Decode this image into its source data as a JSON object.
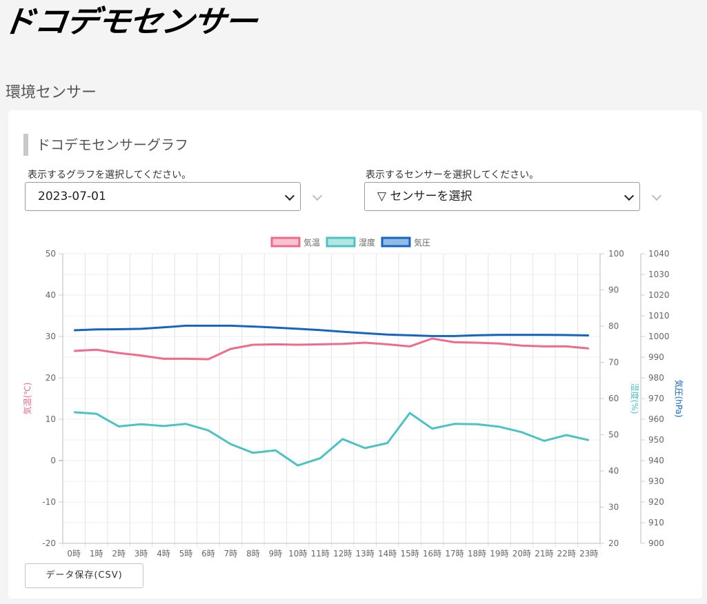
{
  "brand": {
    "logo_text": "ドコデモセンサー"
  },
  "page": {
    "title": "環境センサー"
  },
  "card": {
    "section_title": "ドコデモセンサーグラフ",
    "graph_select": {
      "label": "表示するグラフを選択してください。",
      "value": "2023-07-01"
    },
    "sensor_select": {
      "label": "表示するセンサーを選択してください。",
      "value": "▽ センサーを選択"
    },
    "csv_button": "データ保存(CSV)"
  },
  "colors": {
    "temperature": "#f06a8a",
    "humidity": "#4cc3c0",
    "pressure": "#1565c0",
    "grid": "#e3e3e3",
    "tick": "#666666"
  },
  "chart_data": {
    "type": "line",
    "legend_position": "top-center",
    "grid": true,
    "categories": [
      "0時",
      "1時",
      "2時",
      "3時",
      "4時",
      "5時",
      "6時",
      "7時",
      "8時",
      "9時",
      "10時",
      "11時",
      "12時",
      "13時",
      "14時",
      "15時",
      "16時",
      "17時",
      "18時",
      "19時",
      "20時",
      "21時",
      "22時",
      "23時"
    ],
    "axes": {
      "left": {
        "label": "気温(℃)",
        "min": -20,
        "max": 50,
        "ticks": [
          "50",
          "40",
          "30",
          "20",
          "10",
          "0",
          "-10",
          "-20"
        ]
      },
      "right1": {
        "label": "湿度(%)",
        "min": 20,
        "max": 100,
        "ticks": [
          "100",
          "90",
          "80",
          "70",
          "60",
          "50",
          "40",
          "30",
          "20"
        ]
      },
      "right2": {
        "label": "気圧(hPa)",
        "min": 900,
        "max": 1040,
        "ticks": [
          "1040",
          "1030",
          "1020",
          "1010",
          "1000",
          "990",
          "980",
          "970",
          "960",
          "950",
          "940",
          "930",
          "920",
          "910",
          "900"
        ]
      }
    },
    "series": [
      {
        "name": "気温",
        "axis": "left",
        "values": [
          26.5,
          26.8,
          26.0,
          25.4,
          24.6,
          24.6,
          24.5,
          27.0,
          28.0,
          28.1,
          28.0,
          28.1,
          28.2,
          28.5,
          28.1,
          27.6,
          29.5,
          28.6,
          28.5,
          28.3,
          27.8,
          27.6,
          27.6,
          27.1
        ]
      },
      {
        "name": "湿度",
        "axis": "right1",
        "values": [
          56.2,
          55.8,
          52.3,
          52.9,
          52.4,
          53.0,
          51.2,
          47.4,
          45.0,
          45.7,
          41.5,
          43.5,
          48.8,
          46.3,
          47.7,
          56.0,
          51.7,
          53.0,
          52.9,
          52.2,
          50.7,
          48.3,
          49.9,
          48.5
        ]
      },
      {
        "name": "気圧",
        "axis": "right2",
        "values": [
          1003.0,
          1003.4,
          1003.5,
          1003.7,
          1004.4,
          1005.2,
          1005.2,
          1005.2,
          1004.8,
          1004.3,
          1003.7,
          1003.1,
          1002.3,
          1001.6,
          1000.9,
          1000.6,
          1000.2,
          1000.2,
          1000.6,
          1000.8,
          1000.8,
          1000.8,
          1000.7,
          1000.5
        ]
      }
    ]
  }
}
